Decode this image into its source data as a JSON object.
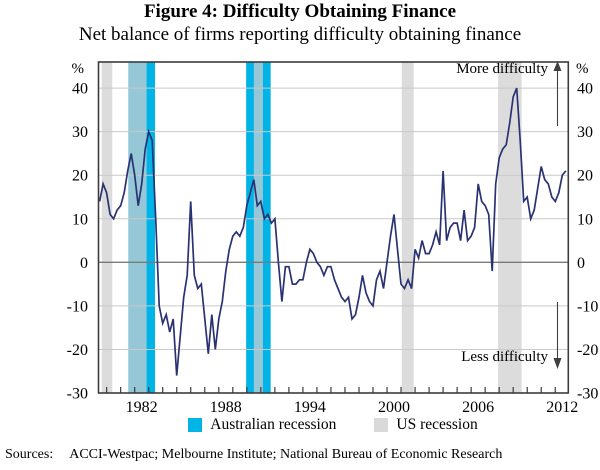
{
  "sources": {
    "label": "Sources:",
    "text": "ACCI-Westpac; Melbourne Institute; National Bureau of Economic Research"
  },
  "chart_data": {
    "type": "line",
    "title": "Figure 4: Difficulty Obtaining Finance",
    "subtitle": "Net balance of firms reporting difficulty obtaining finance",
    "y_unit": "%",
    "ylim": [
      -30,
      46
    ],
    "x_range": [
      1979.42,
      2012.93
    ],
    "yticks": [
      40,
      30,
      20,
      10,
      0,
      -10,
      -20,
      -30
    ],
    "xticks": [
      1982,
      1988,
      1994,
      2000,
      2006,
      2012
    ],
    "grid": true,
    "legend_position": "bottom",
    "annotations": {
      "more": "More difficulty",
      "less": "Less difficulty"
    },
    "legend": [
      {
        "key": "au_recession",
        "label": "Australian recession",
        "color": "#00b4e8"
      },
      {
        "key": "us_recession",
        "label": "US recession",
        "color": "#d9d9d9"
      }
    ],
    "colors": {
      "line": "#2a3272",
      "au_band": "#00b4e8",
      "us_band": "#cecece",
      "us_band_opacity": 0.72,
      "grid": "#c9c9c9",
      "zero_line": "#7a7a7a",
      "frame": "#3c3c3c",
      "arrow": "#3f3f3f"
    },
    "bands": {
      "australian_recession": [
        [
          1981.55,
          1983.45
        ],
        [
          1989.95,
          1991.7
        ]
      ],
      "us_recession": [
        [
          1979.65,
          1980.4
        ],
        [
          1981.55,
          1982.85
        ],
        [
          1990.5,
          1991.15
        ],
        [
          2001.05,
          2001.9
        ],
        [
          2007.92,
          2009.6
        ]
      ]
    },
    "series": [
      {
        "name": "Net balance of firms reporting difficulty obtaining finance",
        "points": [
          [
            1979.5,
            14
          ],
          [
            1979.75,
            18
          ],
          [
            1980,
            16
          ],
          [
            1980.25,
            11
          ],
          [
            1980.5,
            10
          ],
          [
            1980.75,
            12
          ],
          [
            1981,
            13
          ],
          [
            1981.25,
            16
          ],
          [
            1981.5,
            21
          ],
          [
            1981.75,
            25
          ],
          [
            1982,
            20
          ],
          [
            1982.25,
            13
          ],
          [
            1982.5,
            18
          ],
          [
            1982.75,
            26
          ],
          [
            1983,
            30
          ],
          [
            1983.25,
            28
          ],
          [
            1983.5,
            10
          ],
          [
            1983.75,
            -10
          ],
          [
            1984,
            -14
          ],
          [
            1984.25,
            -12
          ],
          [
            1984.5,
            -16
          ],
          [
            1984.75,
            -13
          ],
          [
            1985,
            -26
          ],
          [
            1985.25,
            -17
          ],
          [
            1985.5,
            -8
          ],
          [
            1985.75,
            -3
          ],
          [
            1986,
            14
          ],
          [
            1986.25,
            -3
          ],
          [
            1986.5,
            -6
          ],
          [
            1986.75,
            -5
          ],
          [
            1987,
            -13
          ],
          [
            1987.25,
            -21
          ],
          [
            1987.5,
            -12
          ],
          [
            1987.75,
            -20
          ],
          [
            1988,
            -13
          ],
          [
            1988.25,
            -9
          ],
          [
            1988.5,
            -2
          ],
          [
            1988.75,
            3
          ],
          [
            1989,
            6
          ],
          [
            1989.25,
            7
          ],
          [
            1989.5,
            6
          ],
          [
            1989.75,
            8
          ],
          [
            1990,
            13
          ],
          [
            1990.25,
            16
          ],
          [
            1990.5,
            19
          ],
          [
            1990.75,
            13
          ],
          [
            1991,
            14
          ],
          [
            1991.25,
            10
          ],
          [
            1991.5,
            11
          ],
          [
            1991.75,
            9
          ],
          [
            1992,
            10
          ],
          [
            1992.25,
            0
          ],
          [
            1992.5,
            -9
          ],
          [
            1992.75,
            -1
          ],
          [
            1993,
            -1
          ],
          [
            1993.25,
            -5
          ],
          [
            1993.5,
            -5
          ],
          [
            1993.75,
            -4
          ],
          [
            1994,
            -4
          ],
          [
            1994.25,
            0
          ],
          [
            1994.5,
            3
          ],
          [
            1994.75,
            2
          ],
          [
            1995,
            0
          ],
          [
            1995.25,
            -1
          ],
          [
            1995.5,
            -3
          ],
          [
            1995.75,
            -1
          ],
          [
            1996,
            -1
          ],
          [
            1996.25,
            -4
          ],
          [
            1996.5,
            -6
          ],
          [
            1996.75,
            -8
          ],
          [
            1997,
            -9
          ],
          [
            1997.25,
            -8
          ],
          [
            1997.5,
            -13
          ],
          [
            1997.75,
            -12
          ],
          [
            1998,
            -8
          ],
          [
            1998.25,
            -3
          ],
          [
            1998.5,
            -7
          ],
          [
            1998.75,
            -9
          ],
          [
            1999,
            -10
          ],
          [
            1999.25,
            -4
          ],
          [
            1999.5,
            -2
          ],
          [
            1999.75,
            -6
          ],
          [
            2000,
            0
          ],
          [
            2000.25,
            6
          ],
          [
            2000.5,
            11
          ],
          [
            2000.75,
            3
          ],
          [
            2001,
            -5
          ],
          [
            2001.25,
            -6
          ],
          [
            2001.5,
            -4
          ],
          [
            2001.75,
            -6
          ],
          [
            2002,
            3
          ],
          [
            2002.25,
            1
          ],
          [
            2002.5,
            5
          ],
          [
            2002.75,
            2
          ],
          [
            2003,
            2
          ],
          [
            2003.25,
            4
          ],
          [
            2003.5,
            7
          ],
          [
            2003.75,
            4
          ],
          [
            2004,
            21
          ],
          [
            2004.25,
            5
          ],
          [
            2004.5,
            8
          ],
          [
            2004.75,
            9
          ],
          [
            2005,
            9
          ],
          [
            2005.25,
            5
          ],
          [
            2005.5,
            12
          ],
          [
            2005.75,
            5
          ],
          [
            2006,
            6
          ],
          [
            2006.25,
            8
          ],
          [
            2006.5,
            18
          ],
          [
            2006.75,
            14
          ],
          [
            2007,
            13
          ],
          [
            2007.25,
            11
          ],
          [
            2007.5,
            -2
          ],
          [
            2007.75,
            18
          ],
          [
            2008,
            24
          ],
          [
            2008.25,
            26
          ],
          [
            2008.5,
            27
          ],
          [
            2008.75,
            32
          ],
          [
            2009,
            38
          ],
          [
            2009.25,
            40
          ],
          [
            2009.5,
            28
          ],
          [
            2009.75,
            14
          ],
          [
            2010,
            15
          ],
          [
            2010.25,
            10
          ],
          [
            2010.5,
            12
          ],
          [
            2010.75,
            17
          ],
          [
            2011,
            22
          ],
          [
            2011.25,
            19
          ],
          [
            2011.5,
            18
          ],
          [
            2011.75,
            15
          ],
          [
            2012,
            14
          ],
          [
            2012.25,
            16
          ],
          [
            2012.5,
            20
          ],
          [
            2012.75,
            21
          ]
        ]
      }
    ]
  }
}
